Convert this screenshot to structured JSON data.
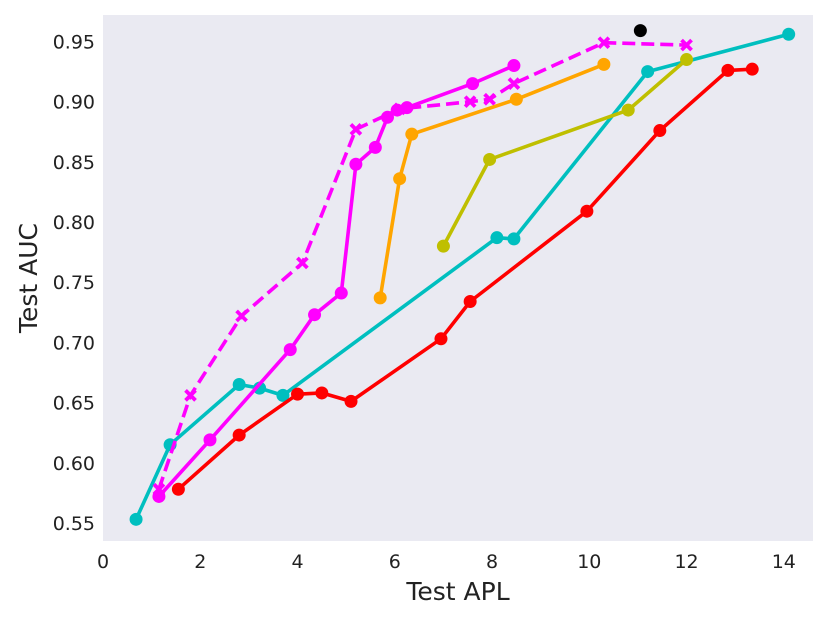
{
  "chart_data": {
    "type": "line",
    "xlabel": "Test APL",
    "ylabel": "Test AUC",
    "xlim": [
      0,
      14.6
    ],
    "ylim": [
      0.535,
      0.972
    ],
    "xticks": [
      0,
      2,
      4,
      6,
      8,
      10,
      12,
      14
    ],
    "yticks": [
      0.55,
      0.6,
      0.65,
      0.7,
      0.75,
      0.8,
      0.85,
      0.9,
      0.95
    ],
    "ytick_labels": [
      "0.55",
      "0.60",
      "0.65",
      "0.70",
      "0.75",
      "0.80",
      "0.85",
      "0.90",
      "0.95"
    ],
    "grid": false,
    "background": "#EAEAF2",
    "series": [
      {
        "color": "#00BFBF",
        "line": "solid",
        "marker": "circle",
        "points": [
          [
            0.68,
            0.553
          ],
          [
            1.38,
            0.615
          ],
          [
            2.8,
            0.665
          ],
          [
            3.22,
            0.662
          ],
          [
            3.7,
            0.656
          ],
          [
            8.1,
            0.787
          ],
          [
            8.45,
            0.786
          ],
          [
            11.2,
            0.925
          ],
          [
            14.1,
            0.956
          ]
        ]
      },
      {
        "color": "#FF0000",
        "line": "solid",
        "marker": "circle",
        "points": [
          [
            1.55,
            0.578
          ],
          [
            2.8,
            0.623
          ],
          [
            4.0,
            0.657
          ],
          [
            4.5,
            0.658
          ],
          [
            5.1,
            0.651
          ],
          [
            6.95,
            0.703
          ],
          [
            7.55,
            0.734
          ],
          [
            9.95,
            0.809
          ],
          [
            11.45,
            0.876
          ],
          [
            12.85,
            0.926
          ],
          [
            13.35,
            0.927
          ]
        ]
      },
      {
        "color": "#FF00FF",
        "line": "solid",
        "marker": "circle",
        "points": [
          [
            1.15,
            0.572
          ],
          [
            2.2,
            0.619
          ],
          [
            3.85,
            0.694
          ],
          [
            4.35,
            0.723
          ],
          [
            4.9,
            0.741
          ],
          [
            5.2,
            0.848
          ],
          [
            5.6,
            0.862
          ],
          [
            5.85,
            0.887
          ],
          [
            6.05,
            0.893
          ],
          [
            6.25,
            0.895
          ],
          [
            7.6,
            0.915
          ],
          [
            8.45,
            0.93
          ]
        ]
      },
      {
        "color": "#FF00FF",
        "line": "dashed",
        "marker": "x",
        "points": [
          [
            1.15,
            0.578
          ],
          [
            1.8,
            0.656
          ],
          [
            2.85,
            0.722
          ],
          [
            4.1,
            0.766
          ],
          [
            5.2,
            0.877
          ],
          [
            6.1,
            0.894
          ],
          [
            7.55,
            0.9
          ],
          [
            7.95,
            0.902
          ],
          [
            8.45,
            0.915
          ],
          [
            10.3,
            0.949
          ],
          [
            12.0,
            0.947
          ]
        ]
      },
      {
        "color": "#FFA500",
        "line": "solid",
        "marker": "circle",
        "points": [
          [
            5.7,
            0.737
          ],
          [
            6.1,
            0.836
          ],
          [
            6.35,
            0.873
          ],
          [
            8.5,
            0.902
          ],
          [
            10.3,
            0.931
          ]
        ]
      },
      {
        "color": "#BFBF00",
        "line": "solid",
        "marker": "circle",
        "points": [
          [
            7.0,
            0.78
          ],
          [
            7.95,
            0.852
          ],
          [
            10.8,
            0.893
          ],
          [
            12.0,
            0.935
          ]
        ]
      },
      {
        "color": "#000000",
        "line": "none",
        "marker": "circle",
        "points": [
          [
            11.05,
            0.959
          ]
        ]
      }
    ]
  }
}
